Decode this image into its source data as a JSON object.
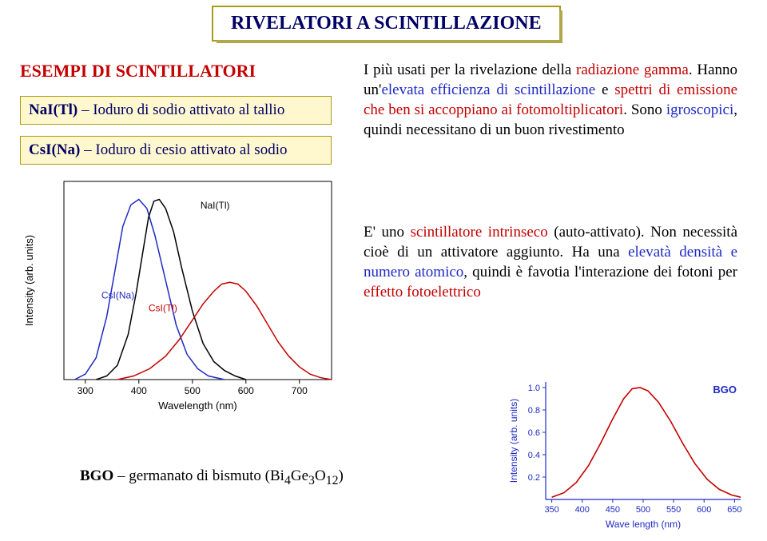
{
  "title": "RIVELATORI A SCINTILLAZIONE",
  "section_title": "ESEMPI DI SCINTILLATORI",
  "boxes": {
    "box1_prefix": "NaI(Tl)",
    "box1_rest": " – Ioduro di sodio attivato al tallio",
    "box2_prefix": "CsI(Na)",
    "box2_rest": " – Ioduro di cesio attivato al sodio"
  },
  "para1": {
    "p1": "I più usati per la rivelazione della ",
    "r1": "radiazione gamma",
    "p2": ". Hanno un'",
    "b1": "elevata efficienza di scintillazione",
    "p3": " e ",
    "r2": "spettri di emissione che ben si accoppiano ai fotomoltiplicatori",
    "p4": ". Sono ",
    "b2": "igroscopici",
    "p5": ", quindi necessitano di un buon rivestimento"
  },
  "para2": {
    "p1": "E' uno ",
    "r1": "scintillatore intrinseco",
    "p2": " (auto-attivato). Non necessità cioè di un attivatore aggiunto. Ha una ",
    "b1": "elevatà densità e numero atomico",
    "p3": ", quindi è favotia l'interazione dei fotoni per ",
    "r2": "effetto fotoelettrico"
  },
  "bgo_caption_prefix": "BGO",
  "bgo_caption_rest": " – germanato di bismuto (Bi",
  "bgo_sub1": "4",
  "bgo_mid": "Ge",
  "bgo_sub2": "3",
  "bgo_mid2": "O",
  "bgo_sub3": "12",
  "bgo_end": ")",
  "chart1": {
    "type": "line",
    "x_label": "Wavelength (nm)",
    "y_label": "Intensity (arb. units)",
    "x_ticks": [
      300,
      400,
      500,
      600,
      700
    ],
    "xlim": [
      260,
      760
    ],
    "ylim": [
      0,
      1.1
    ],
    "series": [
      {
        "name": "CsI(Na)",
        "color": "#1e29c4",
        "label_x": 330,
        "label_y": 0.45,
        "points": [
          [
            280,
            0.0
          ],
          [
            300,
            0.03
          ],
          [
            320,
            0.12
          ],
          [
            340,
            0.35
          ],
          [
            355,
            0.6
          ],
          [
            370,
            0.85
          ],
          [
            385,
            0.97
          ],
          [
            400,
            1.0
          ],
          [
            415,
            0.95
          ],
          [
            430,
            0.8
          ],
          [
            450,
            0.55
          ],
          [
            470,
            0.3
          ],
          [
            490,
            0.14
          ],
          [
            510,
            0.06
          ],
          [
            530,
            0.02
          ],
          [
            560,
            0.0
          ]
        ]
      },
      {
        "name": "NaI(Tl)",
        "color": "#000000",
        "label_x": 515,
        "label_y": 0.95,
        "points": [
          [
            320,
            0.0
          ],
          [
            340,
            0.02
          ],
          [
            360,
            0.08
          ],
          [
            380,
            0.25
          ],
          [
            395,
            0.48
          ],
          [
            408,
            0.72
          ],
          [
            418,
            0.9
          ],
          [
            428,
            0.99
          ],
          [
            438,
            1.0
          ],
          [
            450,
            0.95
          ],
          [
            465,
            0.82
          ],
          [
            480,
            0.62
          ],
          [
            500,
            0.38
          ],
          [
            520,
            0.2
          ],
          [
            540,
            0.1
          ],
          [
            560,
            0.05
          ],
          [
            580,
            0.02
          ],
          [
            600,
            0.0
          ]
        ]
      },
      {
        "name": "CsI(Tl)",
        "color": "#c40000",
        "label_x": 418,
        "label_y": 0.38,
        "points": [
          [
            360,
            0.0
          ],
          [
            390,
            0.02
          ],
          [
            420,
            0.06
          ],
          [
            450,
            0.13
          ],
          [
            475,
            0.22
          ],
          [
            500,
            0.33
          ],
          [
            520,
            0.42
          ],
          [
            540,
            0.49
          ],
          [
            555,
            0.53
          ],
          [
            570,
            0.54
          ],
          [
            585,
            0.53
          ],
          [
            600,
            0.49
          ],
          [
            620,
            0.41
          ],
          [
            640,
            0.31
          ],
          [
            660,
            0.21
          ],
          [
            680,
            0.13
          ],
          [
            700,
            0.07
          ],
          [
            720,
            0.03
          ],
          [
            740,
            0.01
          ],
          [
            760,
            0.0
          ]
        ]
      }
    ],
    "axis_color": "#000000",
    "axis_fontsize": 12,
    "label_fontsize": 13,
    "curve_width": 1.5,
    "background": "#ffffff"
  },
  "chart2": {
    "type": "line",
    "title_label": "BGO",
    "title_color": "#1e29c4",
    "x_label": "Wave length (nm)",
    "y_label": "Intensity (arb. units)",
    "x_ticks": [
      350,
      400,
      450,
      500,
      550,
      600,
      650
    ],
    "y_ticks": [
      0.2,
      0.4,
      0.6,
      0.8,
      1.0
    ],
    "xlim": [
      340,
      660
    ],
    "ylim": [
      0,
      1.05
    ],
    "series": [
      {
        "name": "BGO",
        "color": "#c40000",
        "points": [
          [
            350,
            0.02
          ],
          [
            370,
            0.06
          ],
          [
            390,
            0.15
          ],
          [
            410,
            0.3
          ],
          [
            430,
            0.5
          ],
          [
            450,
            0.72
          ],
          [
            468,
            0.9
          ],
          [
            482,
            0.99
          ],
          [
            495,
            1.0
          ],
          [
            508,
            0.97
          ],
          [
            525,
            0.87
          ],
          [
            545,
            0.7
          ],
          [
            565,
            0.5
          ],
          [
            585,
            0.32
          ],
          [
            605,
            0.18
          ],
          [
            625,
            0.09
          ],
          [
            645,
            0.04
          ],
          [
            660,
            0.02
          ]
        ]
      }
    ],
    "axis_color": "#1e29c4",
    "axis_fontsize": 11,
    "label_fontsize": 12,
    "curve_width": 1.6,
    "background": "#ffffff"
  }
}
